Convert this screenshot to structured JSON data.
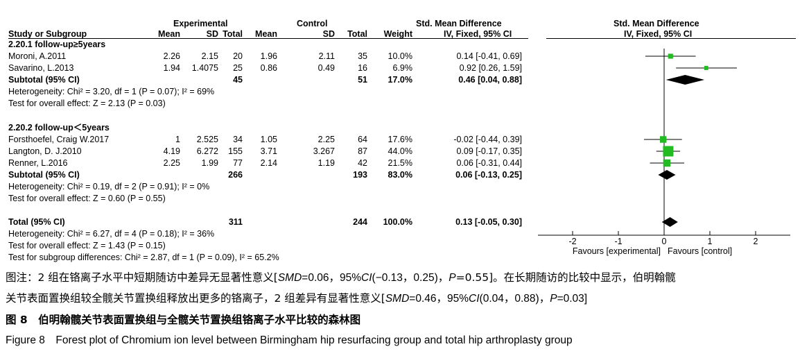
{
  "header": {
    "group1": "Experimental",
    "group2": "Control",
    "effect": "Std. Mean Difference",
    "plot_title": "Std. Mean Difference",
    "cols": {
      "study": "Study or Subgroup",
      "mean1": "Mean",
      "sd1": "SD",
      "total1": "Total",
      "mean2": "Mean",
      "sd2": "SD",
      "total2": "Total",
      "weight": "Weight",
      "ci": "IV, Fixed, 95% CI",
      "plot_ci": "IV, Fixed, 95% CI"
    }
  },
  "subgroup1": {
    "title": "2.20.1 follow-up≥5years",
    "studies": [
      {
        "name": "Moroni, A.2011",
        "mean1": "2.26",
        "sd1": "2.15",
        "total1": "20",
        "mean2": "1.96",
        "sd2": "2.11",
        "total2": "35",
        "weight": "10.0%",
        "ci_text": "0.14 [-0.41, 0.69]"
      },
      {
        "name": "Savarino, L.2013",
        "mean1": "1.94",
        "sd1": "1.4075",
        "total1": "25",
        "mean2": "0.86",
        "sd2": "0.49",
        "total2": "16",
        "weight": "6.9%",
        "ci_text": "0.92 [0.26, 1.59]"
      }
    ],
    "subtotal": {
      "label": "Subtotal (95% CI)",
      "total1": "45",
      "total2": "51",
      "weight": "17.0%",
      "ci_text": "0.46 [0.04, 0.88]"
    },
    "heterogeneity": "Heterogeneity: Chi² = 3.20, df = 1 (P = 0.07); I² = 69%",
    "overall": "Test for overall effect: Z = 2.13 (P = 0.03)"
  },
  "subgroup2": {
    "title": "2.20.2 follow-up＜5years",
    "studies": [
      {
        "name": "Forsthoefel, Craig W.2017",
        "mean1": "1",
        "sd1": "2.525",
        "total1": "34",
        "mean2": "1.05",
        "sd2": "2.25",
        "total2": "64",
        "weight": "17.6%",
        "ci_text": "-0.02 [-0.44, 0.39]"
      },
      {
        "name": "Langton, D. J.2010",
        "mean1": "4.19",
        "sd1": "6.272",
        "total1": "155",
        "mean2": "3.71",
        "sd2": "3.267",
        "total2": "87",
        "weight": "44.0%",
        "ci_text": "0.09 [-0.17, 0.35]"
      },
      {
        "name": "Renner, L.2016",
        "mean1": "2.25",
        "sd1": "1.99",
        "total1": "77",
        "mean2": "2.14",
        "sd2": "1.19",
        "total2": "42",
        "weight": "21.5%",
        "ci_text": "0.06 [-0.31, 0.44]"
      }
    ],
    "subtotal": {
      "label": "Subtotal (95% CI)",
      "total1": "266",
      "total2": "193",
      "weight": "83.0%",
      "ci_text": "0.06 [-0.13, 0.25]"
    },
    "heterogeneity": "Heterogeneity: Chi² = 0.19, df = 2 (P = 0.91); I² = 0%",
    "overall": "Test for overall effect: Z = 0.60 (P = 0.55)"
  },
  "total": {
    "label": "Total (95% CI)",
    "total1": "311",
    "total2": "244",
    "weight": "100.0%",
    "ci_text": "0.13 [-0.05, 0.30]",
    "heterogeneity": "Heterogeneity: Chi² = 6.27, df = 4 (P = 0.18); I² = 36%",
    "overall": "Test for overall effect: Z = 1.43 (P = 0.15)",
    "subgroup_diff": "Test for subgroup differences: Chi² = 2.87, df = 1 (P = 0.09), I² = 65.2%"
  },
  "axis": {
    "tick_labels": [
      "-2",
      "-1",
      "0",
      "1",
      "2"
    ],
    "favours_left": "Favours [experimental]",
    "favours_right": "Favours [control]"
  },
  "chart_data": {
    "type": "forest",
    "xlim": [
      -2,
      2
    ],
    "ticks": [
      -2,
      -1,
      0,
      1,
      2
    ],
    "reference_line": 0,
    "colors": {
      "study_marker": "#22bb22",
      "line": "#000000"
    },
    "studies": [
      {
        "name": "Moroni, A.2011",
        "smd": 0.14,
        "lo": -0.41,
        "hi": 0.69,
        "weight": 10.0
      },
      {
        "name": "Savarino, L.2013",
        "smd": 0.92,
        "lo": 0.26,
        "hi": 1.59,
        "weight": 6.9
      },
      {
        "name": "Forsthoefel, Craig W.2017",
        "smd": -0.02,
        "lo": -0.44,
        "hi": 0.39,
        "weight": 17.6
      },
      {
        "name": "Langton, D. J.2010",
        "smd": 0.09,
        "lo": -0.17,
        "hi": 0.35,
        "weight": 44.0
      },
      {
        "name": "Renner, L.2016",
        "smd": 0.06,
        "lo": -0.31,
        "hi": 0.44,
        "weight": 21.5
      }
    ],
    "summaries": [
      {
        "name": "Subtotal 2.20.1",
        "smd": 0.46,
        "lo": 0.04,
        "hi": 0.88
      },
      {
        "name": "Subtotal 2.20.2",
        "smd": 0.06,
        "lo": -0.13,
        "hi": 0.25
      },
      {
        "name": "Total",
        "smd": 0.13,
        "lo": -0.05,
        "hi": 0.3
      }
    ]
  },
  "caption": {
    "note_line1_a": "图注：2 组在铬离子水平中短期随访中差异无显著性意义[",
    "note_smd_label": "SMD",
    "note_line1_b": "=0.06，95%",
    "note_ci_label": "CI",
    "note_line1_c": "(−0.13，0.25)，",
    "note_p_label": "P",
    "note_line1_d": "=0.55]。在长期随访的比较中显示，伯明翰髋",
    "note_line2_a": "关节表面置换组较全髋关节置换组释放出更多的铬离子，2 组差异有显著性意义[",
    "note_line2_b": "=0.46，95%",
    "note_line2_c": "(0.04，0.88)，",
    "note_line2_d": "=0.03]",
    "figure_cn": "图 8　伯明翰髋关节表面置换组与全髋关节置换组铬离子水平比较的森林图",
    "figure_en": "Figure 8　Forest plot of Chromium ion level between Birmingham hip resurfacing group and total hip arthroplasty group"
  }
}
